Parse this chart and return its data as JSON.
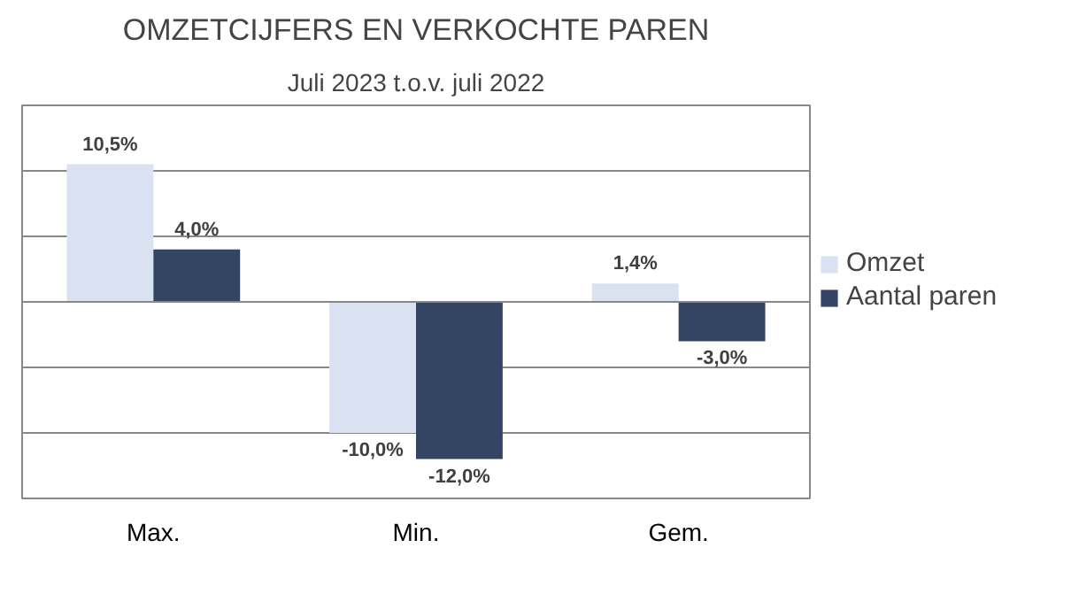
{
  "chart_data": {
    "type": "bar",
    "title": "OMZETCIJFERS EN VERKOCHTE PAREN",
    "subtitle": "Juli 2023 t.o.v. juli 2022",
    "categories": [
      "Max.",
      "Min.",
      "Gem."
    ],
    "series": [
      {
        "name": "Omzet",
        "color": "#dae2f1",
        "values": [
          10.5,
          -10.0,
          1.4
        ],
        "value_labels": [
          "10,5%",
          "-10,0%",
          "1,4%"
        ]
      },
      {
        "name": "Aantal paren",
        "color": "#344563",
        "values": [
          4.0,
          -12.0,
          -3.0
        ],
        "value_labels": [
          "4,0%",
          "-12,0%",
          "-3,0%"
        ]
      }
    ],
    "ylim": [
      -15,
      15
    ],
    "yticks": [
      {
        "value": -15,
        "label": null
      },
      {
        "value": -10,
        "label": null
      },
      {
        "value": -5,
        "label": null
      },
      {
        "value": 0,
        "label": null
      },
      {
        "value": 5,
        "label": null
      },
      {
        "value": 10,
        "label": null
      },
      {
        "value": 15,
        "label": null
      }
    ],
    "tick_labels": "x",
    "grid": "y",
    "legend": "right"
  }
}
